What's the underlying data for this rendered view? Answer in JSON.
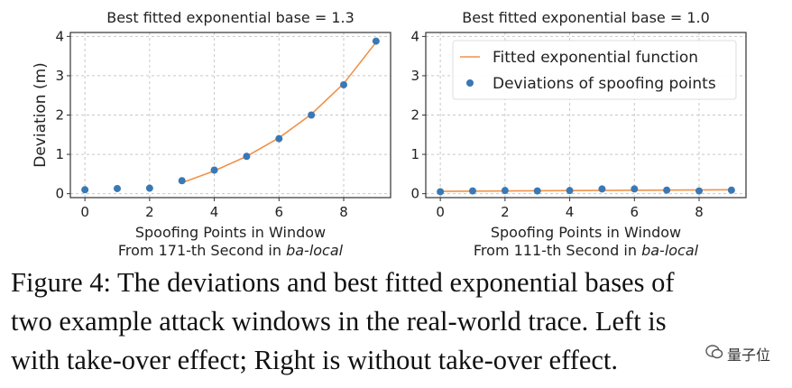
{
  "chart_data": [
    {
      "type": "scatter",
      "title": "Best fitted exponential base = 1.3",
      "xlabel": "Spoofing Points in Window",
      "xlabel2_prefix": "From 171-th Second in ",
      "xlabel2_italic": "ba-local",
      "ylabel": "Deviation (m)",
      "xlim": [
        -0.45,
        9.45
      ],
      "ylim": [
        -0.1,
        4.1
      ],
      "xticks": [
        0,
        2,
        4,
        6,
        8
      ],
      "yticks": [
        0,
        1,
        2,
        3,
        4
      ],
      "grid": true,
      "series": [
        {
          "name": "Deviations of spoofing points",
          "kind": "points",
          "color": "#3a78b5",
          "x": [
            0,
            1,
            2,
            3,
            4,
            5,
            6,
            7,
            8,
            9
          ],
          "y": [
            0.1,
            0.13,
            0.14,
            0.33,
            0.6,
            0.95,
            1.4,
            2.0,
            2.77,
            3.88
          ]
        },
        {
          "name": "Fitted exponential function",
          "kind": "line",
          "color": "#f0924a",
          "base": 1.3,
          "x": [
            3,
            4,
            5,
            6,
            7,
            8,
            9
          ],
          "y": [
            0.28,
            0.58,
            0.95,
            1.42,
            2.02,
            2.8,
            3.85
          ]
        }
      ]
    },
    {
      "type": "scatter",
      "title": "Best fitted exponential base = 1.0",
      "xlabel": "Spoofing Points in Window",
      "xlabel2_prefix": "From 111-th Second in ",
      "xlabel2_italic": "ba-local",
      "ylabel": "",
      "xlim": [
        -0.45,
        9.45
      ],
      "ylim": [
        -0.1,
        4.1
      ],
      "xticks": [
        0,
        2,
        4,
        6,
        8
      ],
      "yticks": [
        0,
        1,
        2,
        3,
        4
      ],
      "grid": true,
      "legend": {
        "placement": "top-right",
        "entries": [
          "Fitted exponential function",
          "Deviations of spoofing points"
        ]
      },
      "series": [
        {
          "name": "Deviations of spoofing points",
          "kind": "points",
          "color": "#3a78b5",
          "x": [
            0,
            1,
            2,
            3,
            4,
            5,
            6,
            7,
            8,
            9
          ],
          "y": [
            0.05,
            0.07,
            0.08,
            0.07,
            0.08,
            0.12,
            0.12,
            0.09,
            0.07,
            0.09
          ]
        },
        {
          "name": "Fitted exponential function",
          "kind": "line",
          "color": "#f0924a",
          "base": 1.0,
          "x": [
            0,
            9
          ],
          "y": [
            0.06,
            0.1
          ]
        }
      ]
    }
  ],
  "caption": {
    "lines": [
      "Figure 4: The deviations and best fitted exponential bases of",
      "two example attack windows in the real-world trace. Left is",
      "with take-over effect; Right is without take-over effect."
    ]
  },
  "watermark": {
    "text": "量子位",
    "icon": "wechat-icon"
  }
}
